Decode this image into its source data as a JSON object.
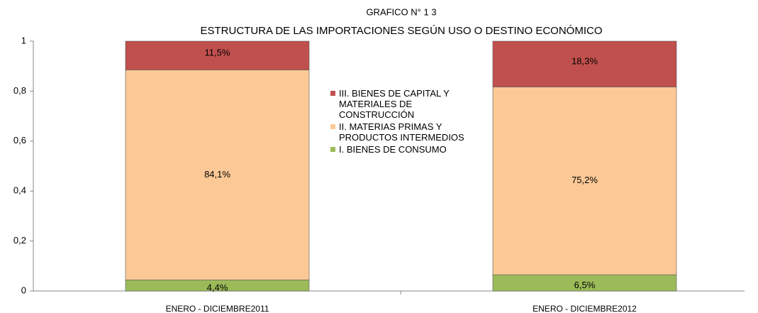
{
  "chart_data": {
    "type": "stacked_bar",
    "title": "GRAFICO N° 1 3",
    "subtitle": "ESTRUCTURA DE LAS IMPORTACIONES SEGÚN USO O DESTINO ECONÓMICO",
    "categories": [
      "ENERO - DICIEMBRE2011",
      "ENERO - DICIEMBRE2012"
    ],
    "series": [
      {
        "name": "I. BIENES DE CONSUMO",
        "color": "#9bbb59",
        "values": [
          0.044,
          0.065
        ],
        "value_labels": [
          "4,4%",
          "6,5%"
        ]
      },
      {
        "name": "II. MATERIAS PRIMAS Y PRODUCTOS INTERMEDIOS",
        "color": "#fcc996",
        "values": [
          0.841,
          0.752
        ],
        "value_labels": [
          "84,1%",
          "75,2%"
        ]
      },
      {
        "name": "III. BIENES DE CAPITAL Y MATERIALES DE CONSTRUCCIÓN",
        "color": "#c0504d",
        "values": [
          0.115,
          0.183
        ],
        "value_labels": [
          "11,5%",
          "18,3%"
        ]
      }
    ],
    "ylim": [
      0,
      1
    ],
    "yticks": [
      0,
      {
        "value": 0.2,
        "label": "0,2"
      },
      {
        "value": 0.4,
        "label": "0,4"
      },
      {
        "value": 0.6,
        "label": "0,6"
      },
      {
        "value": 0.8,
        "label": "0,8"
      },
      1
    ],
    "legend": "center"
  }
}
